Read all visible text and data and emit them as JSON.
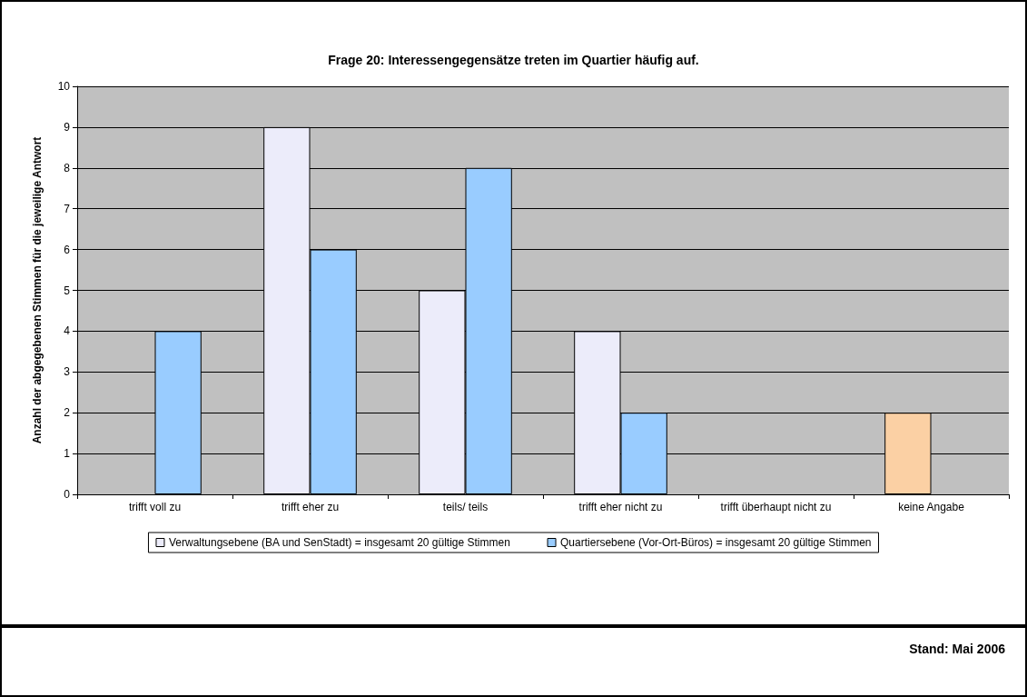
{
  "chart_data": {
    "type": "bar",
    "title": "Frage 20: Interessengegensätze treten im Quartier häufig auf.",
    "ylabel": "Anzahl der abgegebenen Stimmen für die jeweilige Antwort",
    "categories": [
      "trifft voll zu",
      "trifft eher zu",
      "teils/ teils",
      "trifft eher nicht zu",
      "trifft überhaupt nicht zu",
      "keine Angabe"
    ],
    "series": [
      {
        "name": "Verwaltungsebene (BA und SenStadt) = insgesamt 20 gültige Stimmen",
        "color": "#ececfa",
        "colors": [
          "#ececfa",
          "#ececfa",
          "#ececfa",
          "#ececfa",
          "#ececfa",
          "#fbd0a4"
        ],
        "values": [
          0,
          9,
          5,
          4,
          0,
          2
        ]
      },
      {
        "name": "Quartiersebene (Vor-Ort-Büros) = insgesamt 20 gültige Stimmen",
        "color": "#99ccff",
        "values": [
          4,
          6,
          8,
          2,
          0,
          0
        ]
      }
    ],
    "ylim": [
      0,
      10
    ],
    "yticks": [
      0,
      1,
      2,
      3,
      4,
      5,
      6,
      7,
      8,
      9,
      10
    ],
    "grid": "y",
    "legend": "bottom",
    "annotations": [
      "Stand: Mai 2006"
    ]
  }
}
